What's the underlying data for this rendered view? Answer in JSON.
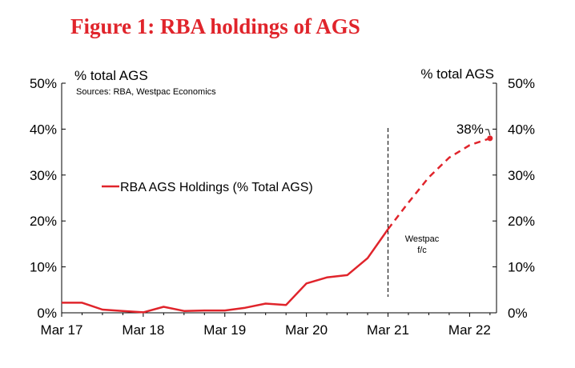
{
  "figure_title": "Figure 1: RBA holdings of AGS",
  "chart_data": {
    "type": "line",
    "left_axis_label": "% total AGS",
    "right_axis_label": "% total AGS",
    "source": "Sources: RBA, Westpac Economics",
    "ylim": [
      0,
      50
    ],
    "y_ticks": [
      "0%",
      "10%",
      "20%",
      "30%",
      "40%",
      "50%"
    ],
    "y_tick_values": [
      0,
      10,
      20,
      30,
      40,
      50
    ],
    "x_ticks": [
      "Mar 17",
      "Mar 18",
      "Mar 19",
      "Mar 20",
      "Mar 21",
      "Mar 22"
    ],
    "x_tick_values": [
      2017.0,
      2018.0,
      2019.0,
      2020.0,
      2021.0,
      2022.0
    ],
    "xlim": [
      2017.0,
      2022.33
    ],
    "grid": false,
    "legend_position": "left-middle",
    "forecast_start": 2021.0,
    "forecast_label_line1": "Westpac",
    "forecast_label_line2": "f/c",
    "end_label": "38%",
    "series": [
      {
        "name": "RBA AGS Holdings (% Total AGS)",
        "color": "#e0242b",
        "actual": [
          {
            "x": 2017.0,
            "y": 2.2
          },
          {
            "x": 2017.25,
            "y": 2.2
          },
          {
            "x": 2017.5,
            "y": 0.7
          },
          {
            "x": 2017.75,
            "y": 0.4
          },
          {
            "x": 2018.0,
            "y": 0.1
          },
          {
            "x": 2018.25,
            "y": 1.3
          },
          {
            "x": 2018.5,
            "y": 0.4
          },
          {
            "x": 2018.75,
            "y": 0.5
          },
          {
            "x": 2019.0,
            "y": 0.5
          },
          {
            "x": 2019.25,
            "y": 1.1
          },
          {
            "x": 2019.5,
            "y": 2.0
          },
          {
            "x": 2019.75,
            "y": 1.7
          },
          {
            "x": 2020.0,
            "y": 6.4
          },
          {
            "x": 2020.25,
            "y": 7.7
          },
          {
            "x": 2020.5,
            "y": 8.2
          },
          {
            "x": 2020.75,
            "y": 11.9
          },
          {
            "x": 2021.0,
            "y": 18.2
          }
        ],
        "forecast": [
          {
            "x": 2021.0,
            "y": 18.2
          },
          {
            "x": 2021.25,
            "y": 24.0
          },
          {
            "x": 2021.5,
            "y": 29.5
          },
          {
            "x": 2021.75,
            "y": 33.8
          },
          {
            "x": 2022.0,
            "y": 36.5
          },
          {
            "x": 2022.25,
            "y": 38.0
          }
        ]
      }
    ]
  }
}
